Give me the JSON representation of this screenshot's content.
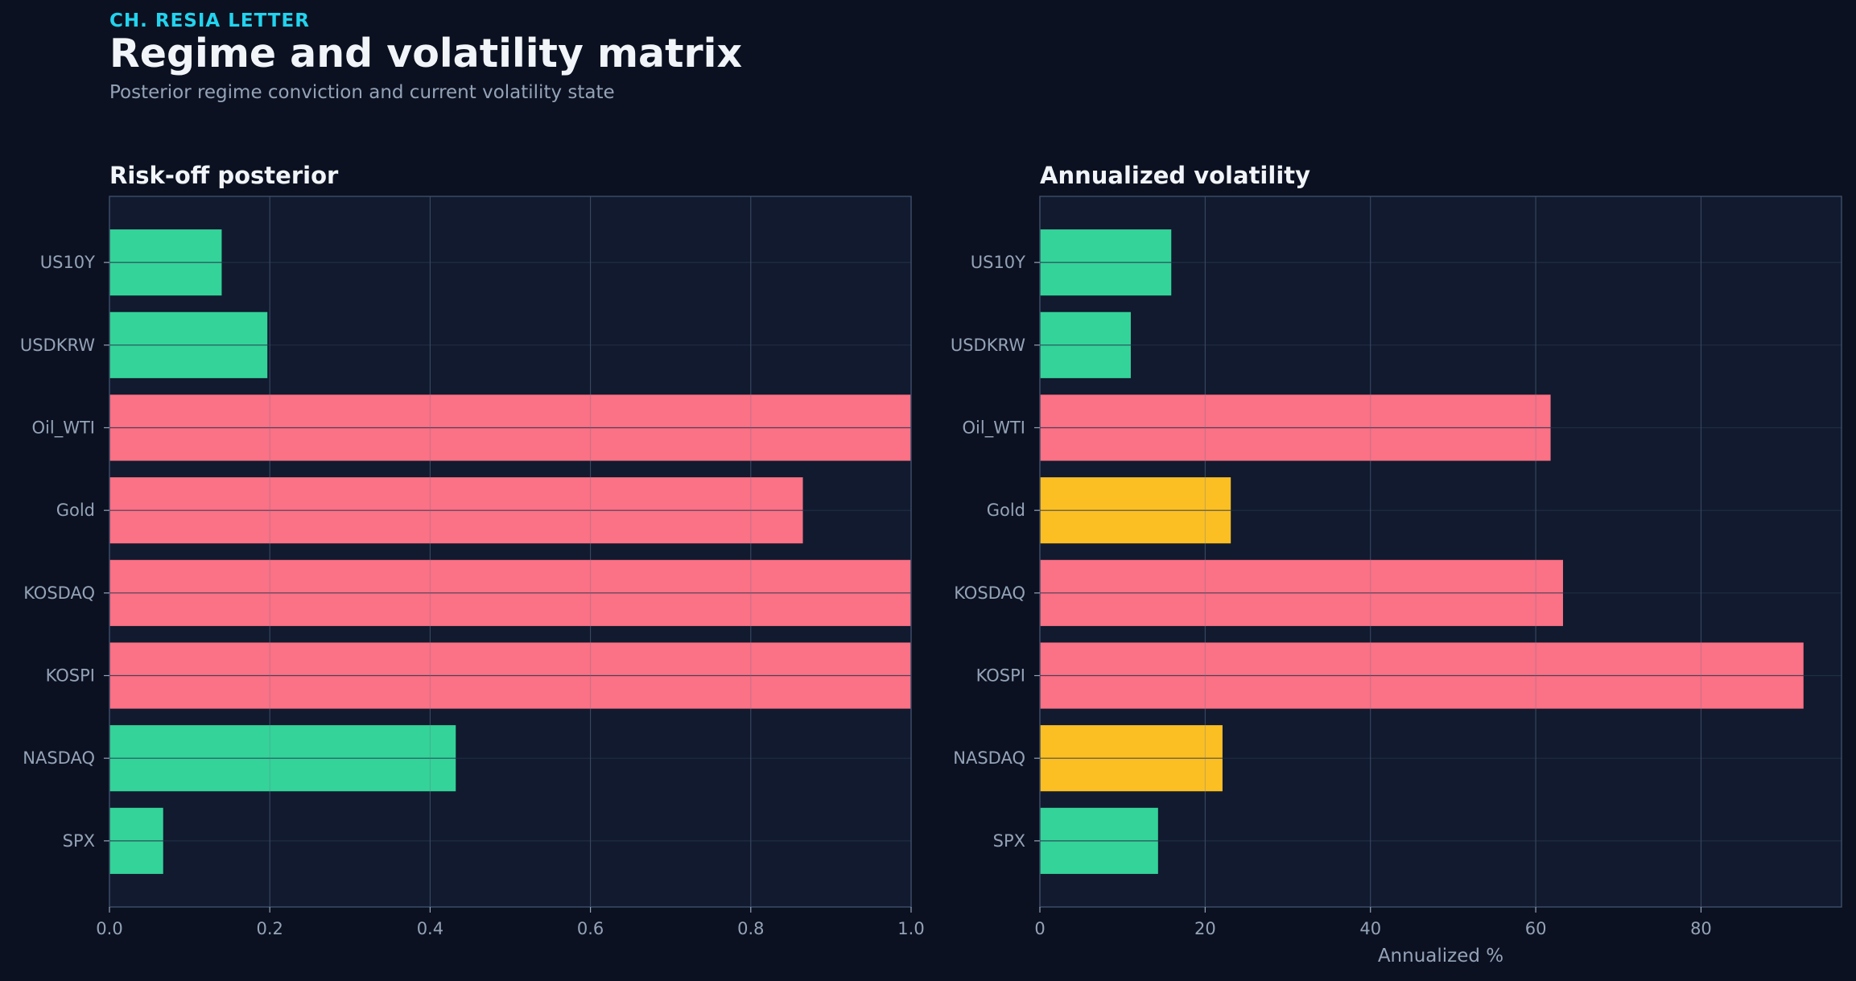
{
  "header": {
    "kicker": "CH. RESIA LETTER",
    "title": "Regime and volatility matrix",
    "subtitle": "Posterior regime conviction and current volatility state"
  },
  "colors": {
    "background": "#0b1120",
    "panel": "#111a2e",
    "grid": "#24324a",
    "axis": "#3b4a66",
    "text": "#94a3b8",
    "title": "#f1f5f9",
    "green": "#34d399",
    "red": "#fb7185",
    "yellow": "#fbbf24"
  },
  "chart_data": [
    {
      "type": "bar",
      "orientation": "horizontal",
      "title": "Risk-off posterior",
      "xlabel": "",
      "ylabel": "",
      "categories": [
        "US10Y",
        "USDKRW",
        "Oil_WTI",
        "Gold",
        "KOSDAQ",
        "KOSPI",
        "NASDAQ",
        "SPX"
      ],
      "values": [
        0.14,
        0.197,
        1.0,
        0.865,
        1.0,
        1.0,
        0.432,
        0.067
      ],
      "bar_colors": [
        "green",
        "green",
        "red",
        "red",
        "red",
        "red",
        "green",
        "green"
      ],
      "xlim": [
        0,
        1.0
      ],
      "xticks": [
        0.0,
        0.2,
        0.4,
        0.6,
        0.8,
        1.0
      ],
      "xtick_labels": [
        "0.0",
        "0.2",
        "0.4",
        "0.6",
        "0.8",
        "1.0"
      ],
      "grid": true
    },
    {
      "type": "bar",
      "orientation": "horizontal",
      "title": "Annualized volatility",
      "xlabel": "Annualized %",
      "ylabel": "",
      "categories": [
        "US10Y",
        "USDKRW",
        "Oil_WTI",
        "Gold",
        "KOSDAQ",
        "KOSPI",
        "NASDAQ",
        "SPX"
      ],
      "values": [
        15.9,
        11.0,
        61.8,
        23.1,
        63.3,
        92.4,
        22.1,
        14.3
      ],
      "bar_colors": [
        "green",
        "green",
        "red",
        "yellow",
        "red",
        "red",
        "yellow",
        "green"
      ],
      "xlim": [
        0,
        97
      ],
      "xticks": [
        0,
        20,
        40,
        60,
        80
      ],
      "xtick_labels": [
        "0",
        "20",
        "40",
        "60",
        "80"
      ],
      "grid": true
    }
  ]
}
